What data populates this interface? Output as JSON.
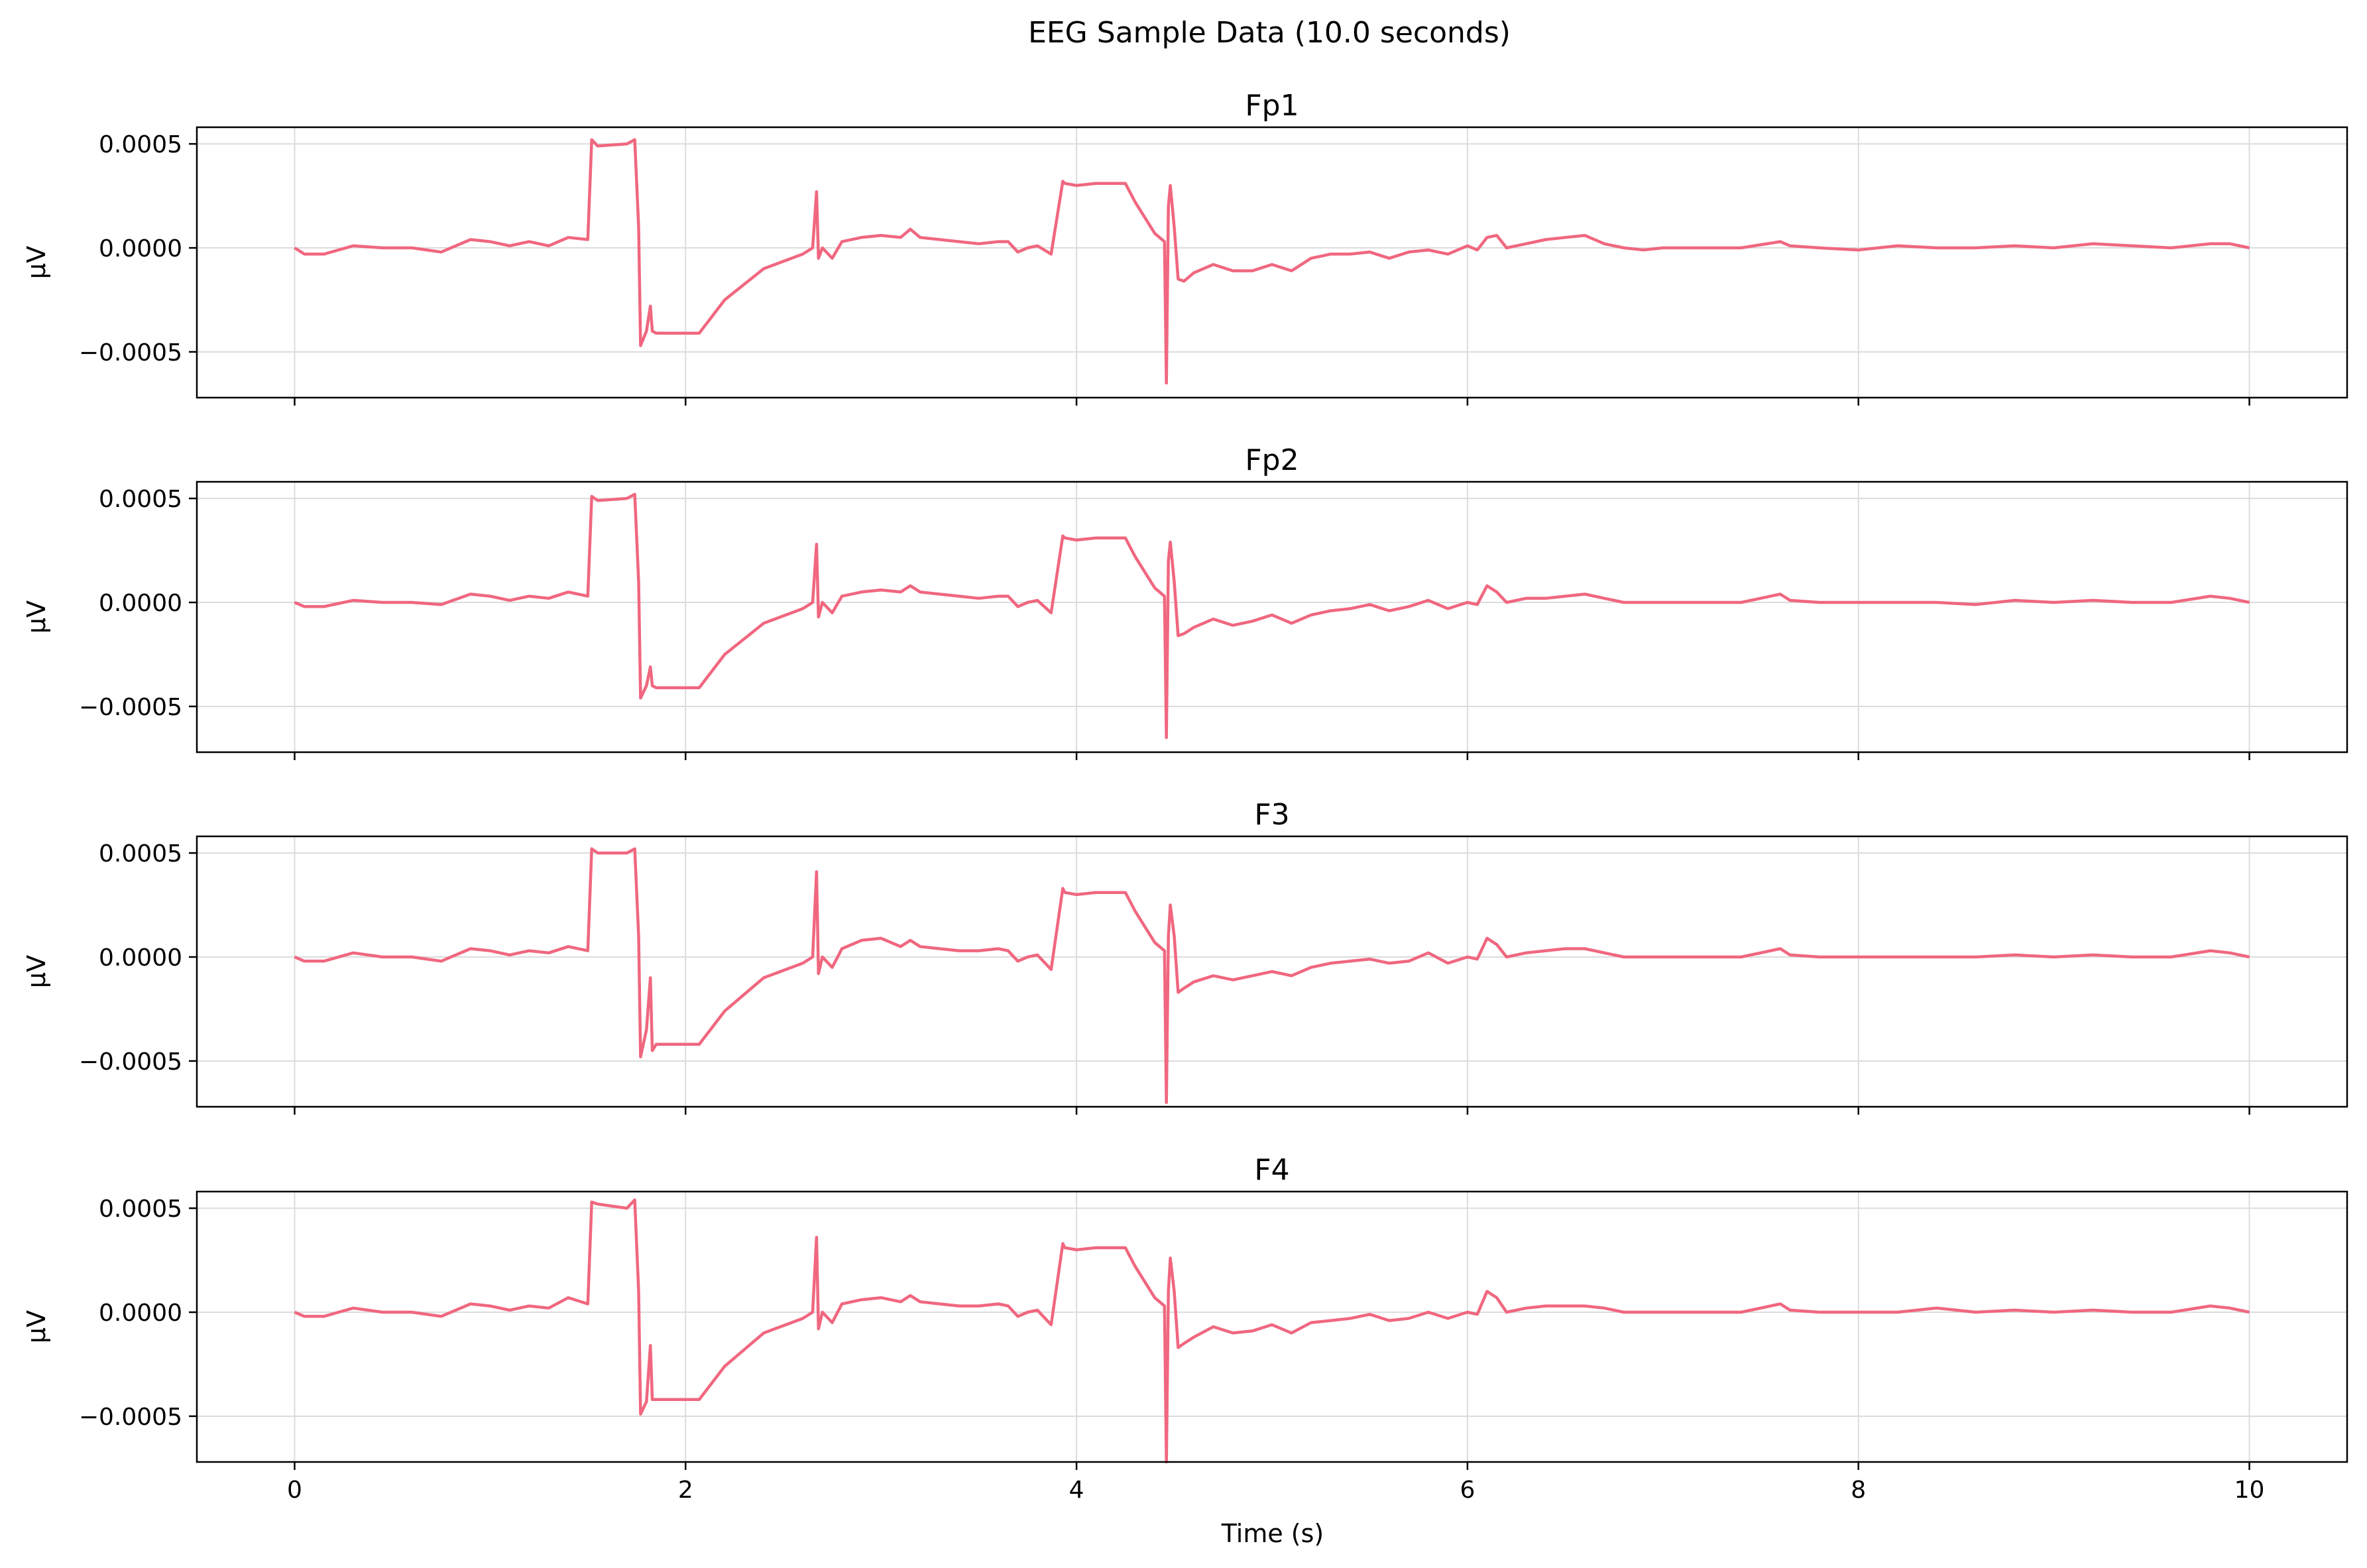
{
  "figure": {
    "title": "EEG Sample Data (10.0 seconds)"
  },
  "colors": {
    "line": "#f0677f",
    "grid": "#dcdcdc",
    "axis": "#000000",
    "background": "#ffffff"
  },
  "chart_data": {
    "type": "line",
    "layout": "4 stacked subplots, shared x-axis",
    "xlabel": "Time (s)",
    "ylabel": "μV",
    "xlim": [
      -0.5,
      10.5
    ],
    "ylim": [
      -0.00072,
      0.00058
    ],
    "grid": true,
    "legend": "none",
    "x_ticks": [
      0,
      2,
      4,
      6,
      8,
      10
    ],
    "y_ticks": [
      -0.0005,
      0.0,
      0.0005
    ],
    "y_tick_labels": [
      "−0.0005",
      "0.0000",
      "0.0005"
    ],
    "series": [
      {
        "name": "Fp1",
        "x": [
          0,
          0.05,
          0.15,
          0.3,
          0.45,
          0.6,
          0.75,
          0.9,
          1.0,
          1.1,
          1.2,
          1.3,
          1.4,
          1.5,
          1.52,
          1.55,
          1.7,
          1.74,
          1.76,
          1.77,
          1.8,
          1.82,
          1.83,
          1.85,
          1.9,
          2.0,
          2.07,
          2.2,
          2.4,
          2.6,
          2.65,
          2.67,
          2.68,
          2.7,
          2.75,
          2.8,
          2.9,
          3.0,
          3.1,
          3.15,
          3.2,
          3.3,
          3.4,
          3.5,
          3.6,
          3.65,
          3.7,
          3.75,
          3.8,
          3.87,
          3.93,
          3.94,
          4.0,
          4.1,
          4.25,
          4.3,
          4.4,
          4.45,
          4.46,
          4.47,
          4.48,
          4.5,
          4.52,
          4.55,
          4.6,
          4.7,
          4.8,
          4.9,
          5.0,
          5.1,
          5.2,
          5.3,
          5.4,
          5.5,
          5.6,
          5.7,
          5.8,
          5.9,
          6.0,
          6.05,
          6.1,
          6.15,
          6.2,
          6.3,
          6.4,
          6.5,
          6.6,
          6.7,
          6.8,
          6.9,
          7.0,
          7.2,
          7.4,
          7.6,
          7.65,
          7.8,
          8.0,
          8.2,
          8.4,
          8.6,
          8.8,
          9.0,
          9.2,
          9.4,
          9.6,
          9.8,
          9.9,
          10.0
        ],
        "values": [
          0.0,
          -3e-05,
          -3e-05,
          1e-05,
          0.0,
          0.0,
          -2e-05,
          4e-05,
          3e-05,
          1e-05,
          3e-05,
          1e-05,
          5e-05,
          4e-05,
          0.00052,
          0.00049,
          0.0005,
          0.00052,
          0.0001,
          -0.00047,
          -0.0004,
          -0.00028,
          -0.0004,
          -0.00041,
          -0.00041,
          -0.00041,
          -0.00041,
          -0.00025,
          -0.0001,
          -3e-05,
          0.0,
          0.00027,
          -5e-05,
          0.0,
          -5e-05,
          3e-05,
          5e-05,
          6e-05,
          5e-05,
          9e-05,
          5e-05,
          4e-05,
          3e-05,
          2e-05,
          3e-05,
          3e-05,
          -2e-05,
          0.0,
          1e-05,
          -3e-05,
          0.00032,
          0.00031,
          0.0003,
          0.00031,
          0.00031,
          0.00022,
          7e-05,
          3e-05,
          -0.00065,
          0.0002,
          0.0003,
          0.0001,
          -0.00015,
          -0.00016,
          -0.00012,
          -8e-05,
          -0.00011,
          -0.00011,
          -8e-05,
          -0.00011,
          -5e-05,
          -3e-05,
          -3e-05,
          -2e-05,
          -5e-05,
          -2e-05,
          -1e-05,
          -3e-05,
          1e-05,
          -1e-05,
          5e-05,
          6e-05,
          0.0,
          2e-05,
          4e-05,
          5e-05,
          6e-05,
          2e-05,
          0.0,
          -1e-05,
          0.0,
          0.0,
          0.0,
          3e-05,
          1e-05,
          0.0,
          -1e-05,
          1e-05,
          0.0,
          0.0,
          1e-05,
          0.0,
          2e-05,
          1e-05,
          0.0,
          2e-05,
          2e-05,
          0.0
        ]
      },
      {
        "name": "Fp2",
        "x": [
          0,
          0.05,
          0.15,
          0.3,
          0.45,
          0.6,
          0.75,
          0.9,
          1.0,
          1.1,
          1.2,
          1.3,
          1.4,
          1.5,
          1.52,
          1.55,
          1.7,
          1.74,
          1.76,
          1.77,
          1.8,
          1.82,
          1.83,
          1.85,
          1.9,
          2.0,
          2.07,
          2.2,
          2.4,
          2.6,
          2.65,
          2.67,
          2.68,
          2.7,
          2.75,
          2.8,
          2.9,
          3.0,
          3.1,
          3.15,
          3.2,
          3.3,
          3.4,
          3.5,
          3.6,
          3.65,
          3.7,
          3.75,
          3.8,
          3.87,
          3.93,
          3.94,
          4.0,
          4.1,
          4.25,
          4.3,
          4.4,
          4.45,
          4.46,
          4.47,
          4.48,
          4.5,
          4.52,
          4.55,
          4.6,
          4.7,
          4.8,
          4.9,
          5.0,
          5.1,
          5.2,
          5.3,
          5.4,
          5.5,
          5.6,
          5.7,
          5.8,
          5.9,
          6.0,
          6.05,
          6.1,
          6.15,
          6.2,
          6.3,
          6.4,
          6.5,
          6.6,
          6.7,
          6.8,
          6.9,
          7.0,
          7.2,
          7.4,
          7.6,
          7.65,
          7.8,
          8.0,
          8.2,
          8.4,
          8.6,
          8.8,
          9.0,
          9.2,
          9.4,
          9.6,
          9.8,
          9.9,
          10.0
        ],
        "values": [
          0.0,
          -2e-05,
          -2e-05,
          1e-05,
          0.0,
          0.0,
          -1e-05,
          4e-05,
          3e-05,
          1e-05,
          3e-05,
          2e-05,
          5e-05,
          3e-05,
          0.00051,
          0.00049,
          0.0005,
          0.00052,
          0.0001,
          -0.00046,
          -0.0004,
          -0.00031,
          -0.0004,
          -0.00041,
          -0.00041,
          -0.00041,
          -0.00041,
          -0.00025,
          -0.0001,
          -3e-05,
          0.0,
          0.00028,
          -7e-05,
          0.0,
          -5e-05,
          3e-05,
          5e-05,
          6e-05,
          5e-05,
          8e-05,
          5e-05,
          4e-05,
          3e-05,
          2e-05,
          3e-05,
          3e-05,
          -2e-05,
          0.0,
          1e-05,
          -5e-05,
          0.00032,
          0.00031,
          0.0003,
          0.00031,
          0.00031,
          0.00022,
          7e-05,
          3e-05,
          -0.00065,
          0.0002,
          0.00029,
          0.0001,
          -0.00016,
          -0.00015,
          -0.00012,
          -8e-05,
          -0.00011,
          -9e-05,
          -6e-05,
          -0.0001,
          -6e-05,
          -4e-05,
          -3e-05,
          -1e-05,
          -4e-05,
          -2e-05,
          1e-05,
          -3e-05,
          0.0,
          -1e-05,
          8e-05,
          5e-05,
          0.0,
          2e-05,
          2e-05,
          3e-05,
          4e-05,
          2e-05,
          0.0,
          0.0,
          0.0,
          0.0,
          0.0,
          4e-05,
          1e-05,
          0.0,
          0.0,
          0.0,
          0.0,
          -1e-05,
          1e-05,
          0.0,
          1e-05,
          0.0,
          0.0,
          3e-05,
          2e-05,
          0.0
        ]
      },
      {
        "name": "F3",
        "x": [
          0,
          0.05,
          0.15,
          0.3,
          0.45,
          0.6,
          0.75,
          0.9,
          1.0,
          1.1,
          1.2,
          1.3,
          1.4,
          1.5,
          1.52,
          1.55,
          1.7,
          1.74,
          1.76,
          1.77,
          1.8,
          1.82,
          1.83,
          1.85,
          1.9,
          2.0,
          2.07,
          2.2,
          2.4,
          2.6,
          2.65,
          2.67,
          2.68,
          2.7,
          2.75,
          2.8,
          2.9,
          3.0,
          3.1,
          3.15,
          3.2,
          3.3,
          3.4,
          3.5,
          3.6,
          3.65,
          3.7,
          3.75,
          3.8,
          3.87,
          3.93,
          3.94,
          4.0,
          4.1,
          4.25,
          4.3,
          4.4,
          4.45,
          4.46,
          4.47,
          4.48,
          4.5,
          4.52,
          4.55,
          4.6,
          4.7,
          4.8,
          4.9,
          5.0,
          5.1,
          5.2,
          5.3,
          5.4,
          5.5,
          5.6,
          5.7,
          5.8,
          5.9,
          6.0,
          6.05,
          6.1,
          6.15,
          6.2,
          6.3,
          6.4,
          6.5,
          6.6,
          6.7,
          6.8,
          6.9,
          7.0,
          7.2,
          7.4,
          7.6,
          7.65,
          7.8,
          8.0,
          8.2,
          8.4,
          8.6,
          8.8,
          9.0,
          9.2,
          9.4,
          9.6,
          9.8,
          9.9,
          10.0
        ],
        "values": [
          0.0,
          -2e-05,
          -2e-05,
          2e-05,
          0.0,
          0.0,
          -2e-05,
          4e-05,
          3e-05,
          1e-05,
          3e-05,
          2e-05,
          5e-05,
          3e-05,
          0.00052,
          0.0005,
          0.0005,
          0.00052,
          0.0001,
          -0.00048,
          -0.00035,
          -0.0001,
          -0.00045,
          -0.00042,
          -0.00042,
          -0.00042,
          -0.00042,
          -0.00026,
          -0.0001,
          -3e-05,
          0.0,
          0.00041,
          -8e-05,
          0.0,
          -5e-05,
          4e-05,
          8e-05,
          9e-05,
          5e-05,
          8e-05,
          5e-05,
          4e-05,
          3e-05,
          3e-05,
          4e-05,
          3e-05,
          -2e-05,
          0.0,
          1e-05,
          -6e-05,
          0.00033,
          0.00031,
          0.0003,
          0.00031,
          0.00031,
          0.00022,
          7e-05,
          3e-05,
          -0.0007,
          0.0001,
          0.00025,
          0.0001,
          -0.00017,
          -0.00015,
          -0.00012,
          -9e-05,
          -0.00011,
          -9e-05,
          -7e-05,
          -9e-05,
          -5e-05,
          -3e-05,
          -2e-05,
          -1e-05,
          -3e-05,
          -2e-05,
          2e-05,
          -3e-05,
          0.0,
          -1e-05,
          9e-05,
          6e-05,
          0.0,
          2e-05,
          3e-05,
          4e-05,
          4e-05,
          2e-05,
          0.0,
          0.0,
          0.0,
          0.0,
          0.0,
          4e-05,
          1e-05,
          0.0,
          0.0,
          0.0,
          0.0,
          0.0,
          1e-05,
          0.0,
          1e-05,
          0.0,
          0.0,
          3e-05,
          2e-05,
          0.0
        ]
      },
      {
        "name": "F4",
        "x": [
          0,
          0.05,
          0.15,
          0.3,
          0.45,
          0.6,
          0.75,
          0.9,
          1.0,
          1.1,
          1.2,
          1.3,
          1.4,
          1.5,
          1.52,
          1.55,
          1.7,
          1.74,
          1.76,
          1.77,
          1.8,
          1.82,
          1.83,
          1.85,
          1.9,
          2.0,
          2.07,
          2.2,
          2.4,
          2.6,
          2.65,
          2.67,
          2.68,
          2.7,
          2.75,
          2.8,
          2.9,
          3.0,
          3.1,
          3.15,
          3.2,
          3.3,
          3.4,
          3.5,
          3.6,
          3.65,
          3.7,
          3.75,
          3.8,
          3.87,
          3.93,
          3.94,
          4.0,
          4.1,
          4.25,
          4.3,
          4.4,
          4.45,
          4.46,
          4.47,
          4.48,
          4.5,
          4.52,
          4.55,
          4.6,
          4.7,
          4.8,
          4.9,
          5.0,
          5.1,
          5.2,
          5.3,
          5.4,
          5.5,
          5.6,
          5.7,
          5.8,
          5.9,
          6.0,
          6.05,
          6.1,
          6.15,
          6.2,
          6.3,
          6.4,
          6.5,
          6.6,
          6.7,
          6.8,
          6.9,
          7.0,
          7.2,
          7.4,
          7.6,
          7.65,
          7.8,
          8.0,
          8.2,
          8.4,
          8.6,
          8.8,
          9.0,
          9.2,
          9.4,
          9.6,
          9.8,
          9.9,
          10.0
        ],
        "values": [
          0.0,
          -2e-05,
          -2e-05,
          2e-05,
          0.0,
          0.0,
          -2e-05,
          4e-05,
          3e-05,
          1e-05,
          3e-05,
          2e-05,
          7e-05,
          4e-05,
          0.00053,
          0.00052,
          0.0005,
          0.00054,
          0.0001,
          -0.00049,
          -0.00043,
          -0.00016,
          -0.00042,
          -0.00042,
          -0.00042,
          -0.00042,
          -0.00042,
          -0.00026,
          -0.0001,
          -3e-05,
          0.0,
          0.00036,
          -8e-05,
          0.0,
          -5e-05,
          4e-05,
          6e-05,
          7e-05,
          5e-05,
          8e-05,
          5e-05,
          4e-05,
          3e-05,
          3e-05,
          4e-05,
          3e-05,
          -2e-05,
          0.0,
          1e-05,
          -6e-05,
          0.00033,
          0.00031,
          0.0003,
          0.00031,
          0.00031,
          0.00022,
          7e-05,
          3e-05,
          -0.00072,
          0.0001,
          0.00026,
          0.0001,
          -0.00017,
          -0.00015,
          -0.00012,
          -7e-05,
          -0.0001,
          -9e-05,
          -6e-05,
          -0.0001,
          -5e-05,
          -4e-05,
          -3e-05,
          -1e-05,
          -4e-05,
          -3e-05,
          0.0,
          -3e-05,
          0.0,
          -1e-05,
          0.0001,
          7e-05,
          0.0,
          2e-05,
          3e-05,
          3e-05,
          3e-05,
          2e-05,
          0.0,
          0.0,
          0.0,
          0.0,
          0.0,
          4e-05,
          1e-05,
          0.0,
          0.0,
          0.0,
          2e-05,
          0.0,
          1e-05,
          0.0,
          1e-05,
          0.0,
          0.0,
          3e-05,
          2e-05,
          0.0
        ]
      }
    ]
  }
}
